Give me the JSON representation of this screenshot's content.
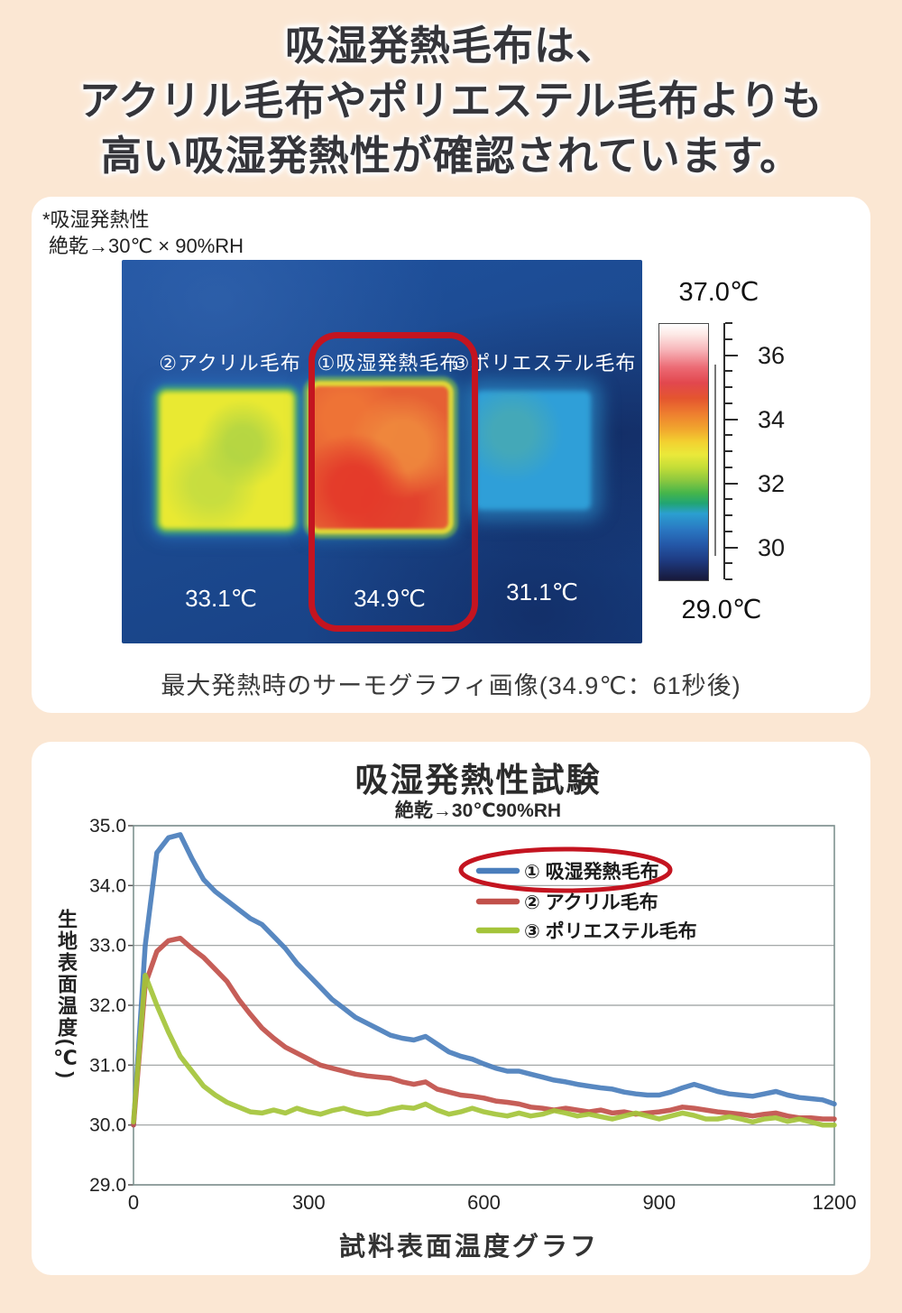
{
  "header": {
    "line1": "吸湿発熱毛布は、",
    "line2": "アクリル毛布やポリエステル毛布よりも",
    "line3": "高い吸湿発熱性が確認されています。"
  },
  "thermo_card": {
    "note_line1": "*吸湿発熱性",
    "note_line2": "絶乾→30℃ × 90%RH",
    "caption": "最大発熱時のサーモグラフィ画像(34.9℃：61秒後)",
    "samples": [
      {
        "label": "②アクリル毛布",
        "temp": "33.1℃",
        "square_color": "#e9e932",
        "highlighted": false
      },
      {
        "label": "①吸湿発熱毛布",
        "temp": "34.9℃",
        "square_color": "#e66034",
        "highlighted": true
      },
      {
        "label": "③ポリエステル毛布",
        "temp": "31.1℃",
        "square_color": "#2f9fd8",
        "highlighted": false
      }
    ],
    "scale": {
      "max_label": "37.0℃",
      "min_label": "29.0℃",
      "max_value": 37.0,
      "min_value": 29.0,
      "tick_step": 0.5,
      "major_ticks": [
        36,
        34,
        32,
        30
      ]
    }
  },
  "chart_data": {
    "type": "line",
    "title": "吸湿発熱性試験",
    "subtitle": "絶乾→30℃90%RH",
    "ylabel": "生地表面温度(℃)",
    "xlabel": "試料表面温度グラフ",
    "ylim": [
      29.0,
      35.0
    ],
    "xlim": [
      0,
      1200
    ],
    "y_ticks": [
      35.0,
      34.0,
      33.0,
      32.0,
      31.0,
      30.0,
      29.0
    ],
    "x_ticks": [
      0,
      300,
      600,
      900,
      1200
    ],
    "grid": true,
    "legend_position": "inside-top-right",
    "x_start": 0,
    "x_step": 20,
    "series": [
      {
        "name": "① 吸湿発熱毛布",
        "color": "#4a7ebc",
        "highlighted": true,
        "values": [
          30.0,
          33.0,
          34.55,
          34.8,
          34.85,
          34.45,
          34.1,
          33.9,
          33.75,
          33.6,
          33.45,
          33.35,
          33.15,
          32.95,
          32.7,
          32.5,
          32.3,
          32.1,
          31.95,
          31.8,
          31.7,
          31.6,
          31.5,
          31.45,
          31.42,
          31.48,
          31.35,
          31.22,
          31.15,
          31.1,
          31.02,
          30.95,
          30.9,
          30.9,
          30.85,
          30.8,
          30.75,
          30.72,
          30.68,
          30.65,
          30.62,
          30.6,
          30.55,
          30.52,
          30.5,
          30.5,
          30.55,
          30.62,
          30.68,
          30.62,
          30.56,
          30.52,
          30.5,
          30.48,
          30.52,
          30.56,
          30.5,
          30.46,
          30.44,
          30.42,
          30.35
        ]
      },
      {
        "name": "② アクリル毛布",
        "color": "#c1504a",
        "highlighted": false,
        "values": [
          30.0,
          32.35,
          32.9,
          33.08,
          33.12,
          32.95,
          32.8,
          32.6,
          32.4,
          32.1,
          31.85,
          31.62,
          31.45,
          31.3,
          31.2,
          31.1,
          31.0,
          30.95,
          30.9,
          30.85,
          30.82,
          30.8,
          30.78,
          30.72,
          30.68,
          30.72,
          30.6,
          30.55,
          30.5,
          30.48,
          30.45,
          30.4,
          30.38,
          30.35,
          30.3,
          30.28,
          30.25,
          30.28,
          30.25,
          30.22,
          30.25,
          30.2,
          30.22,
          30.18,
          30.2,
          30.22,
          30.25,
          30.3,
          30.28,
          30.25,
          30.22,
          30.2,
          30.18,
          30.15,
          30.18,
          30.2,
          30.15,
          30.12,
          30.12,
          30.1,
          30.1
        ]
      },
      {
        "name": "③ ポリエステル毛布",
        "color": "#a4c43a",
        "highlighted": false,
        "values": [
          30.05,
          32.5,
          32.0,
          31.55,
          31.15,
          30.9,
          30.65,
          30.5,
          30.38,
          30.3,
          30.22,
          30.2,
          30.25,
          30.2,
          30.28,
          30.22,
          30.18,
          30.24,
          30.28,
          30.22,
          30.18,
          30.2,
          30.26,
          30.3,
          30.28,
          30.35,
          30.25,
          30.18,
          30.22,
          30.28,
          30.22,
          30.18,
          30.15,
          30.2,
          30.15,
          30.18,
          30.24,
          30.2,
          30.15,
          30.18,
          30.14,
          30.1,
          30.15,
          30.2,
          30.15,
          30.1,
          30.15,
          30.2,
          30.16,
          30.1,
          30.1,
          30.14,
          30.1,
          30.05,
          30.1,
          30.12,
          30.06,
          30.1,
          30.05,
          30.0,
          30.0
        ]
      }
    ]
  },
  "colors": {
    "page_bg": "#fbe7d3",
    "annotation_red": "#c41420",
    "thermal_bg": "#1c4a90",
    "grid_line": "#989d9d",
    "plot_border": "#7f9290"
  }
}
